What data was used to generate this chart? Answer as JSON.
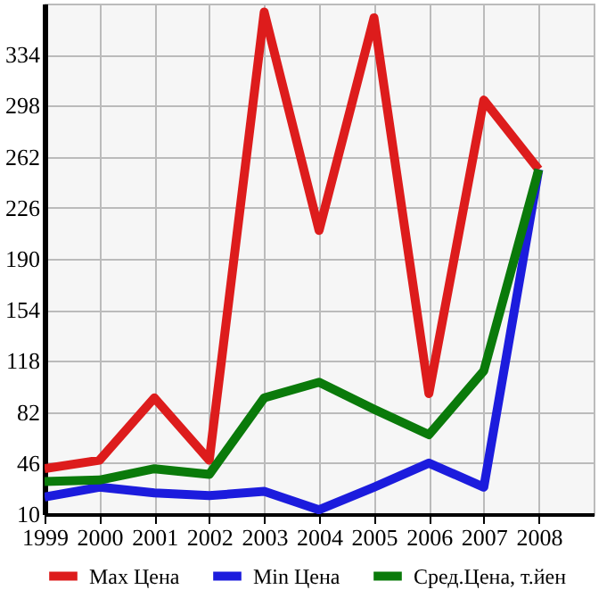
{
  "chart_data": {
    "type": "line",
    "x": [
      1999,
      2000,
      2001,
      2002,
      2003,
      2004,
      2005,
      2006,
      2007,
      2008
    ],
    "series": [
      {
        "name": "Max Цена",
        "color": "#dd1c1c",
        "values": [
          42,
          48,
          92,
          48,
          364,
          210,
          360,
          95,
          302,
          253
        ]
      },
      {
        "name": "Min Цена",
        "color": "#1c1cdd",
        "values": [
          22,
          29,
          25,
          23,
          26,
          13,
          29,
          46,
          29,
          253
        ]
      },
      {
        "name": "Сред.Цена, т.йен",
        "color": "#0a7a0a",
        "values": [
          33,
          34,
          42,
          38,
          92,
          103,
          84,
          66,
          111,
          253
        ]
      }
    ],
    "xlim": [
      1999,
      2009
    ],
    "xticks": [
      1999,
      2000,
      2001,
      2002,
      2003,
      2004,
      2005,
      2006,
      2007,
      2008
    ],
    "ylim": [
      10,
      370
    ],
    "yticks": [
      10,
      46,
      82,
      118,
      154,
      190,
      226,
      262,
      298,
      334
    ],
    "grid": true,
    "legend": "bottom",
    "marker": "none",
    "line_style": "solid"
  }
}
